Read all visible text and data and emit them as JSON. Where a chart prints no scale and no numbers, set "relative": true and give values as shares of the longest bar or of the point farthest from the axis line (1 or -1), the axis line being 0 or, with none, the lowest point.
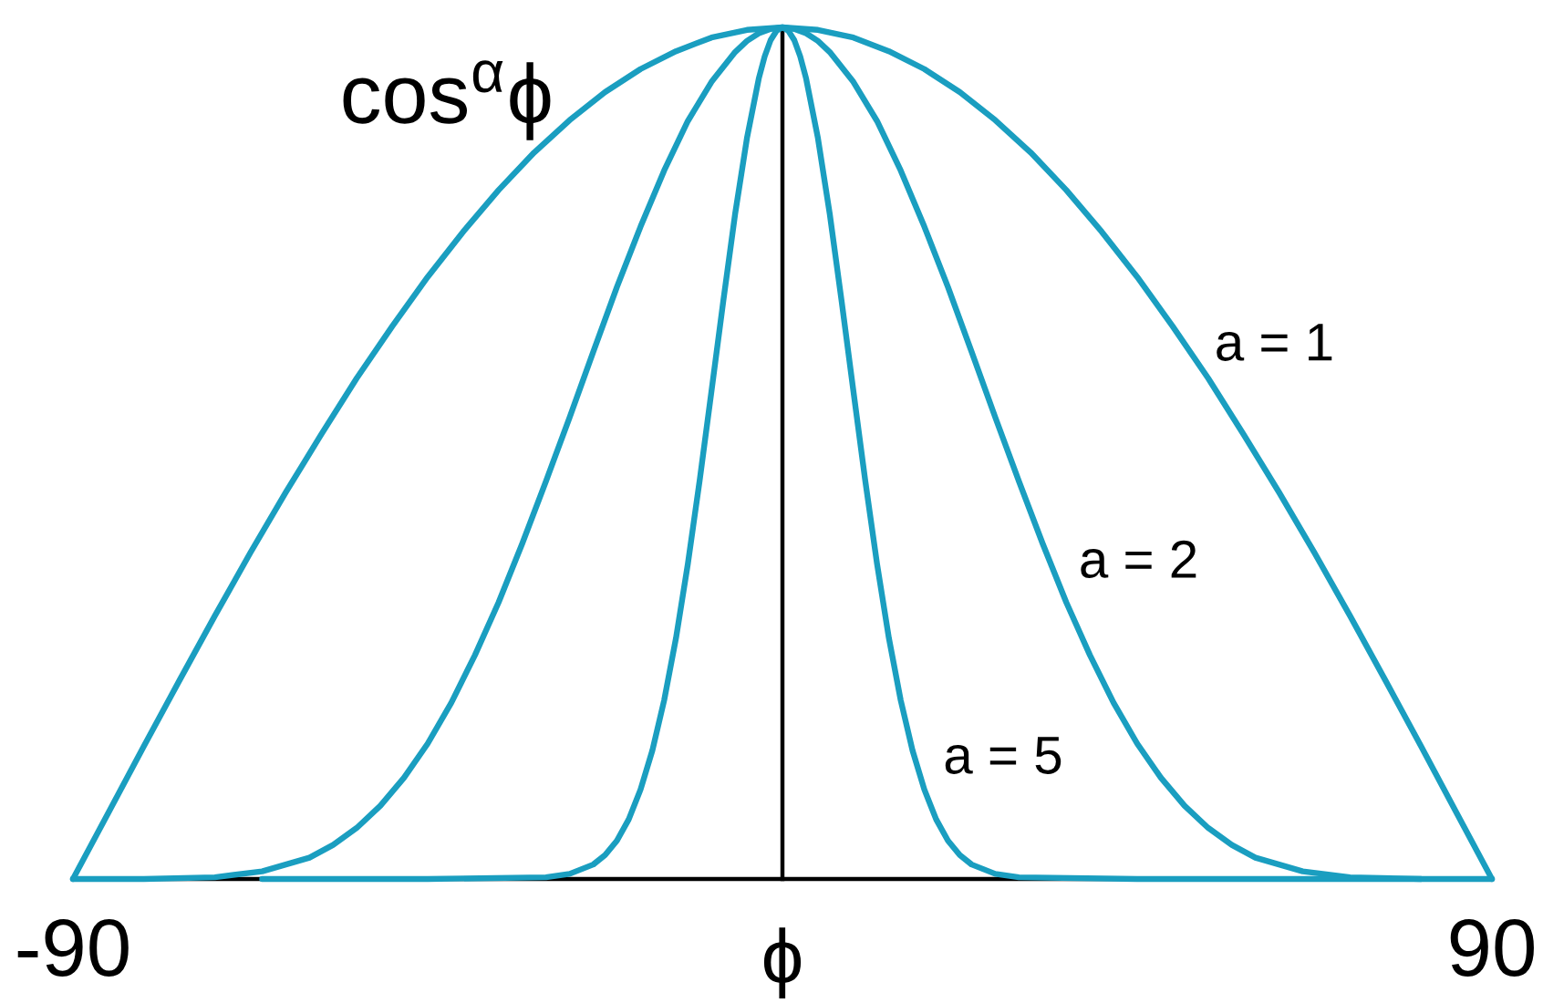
{
  "chart_data": {
    "type": "line",
    "relative": true,
    "ylabel": "cos$^{α}$ϕ",
    "xlabel": "ϕ",
    "xlim": [
      -90,
      90
    ],
    "xticks": [
      -90,
      90
    ],
    "series": [
      {
        "name": "a = 1",
        "color": "#1a9ec0",
        "x": [
          -90,
          -85.5,
          -81,
          -76.5,
          -72,
          -67.5,
          -63,
          -58.5,
          -54,
          -49.5,
          -45,
          -40.5,
          -36,
          -31.5,
          -27,
          -22.5,
          -18,
          -13.5,
          -9,
          -4.5,
          0,
          4.5,
          9,
          13.5,
          18,
          22.5,
          27,
          31.5,
          36,
          40.5,
          45,
          49.5,
          54,
          58.5,
          63,
          67.5,
          72,
          76.5,
          81,
          85.5,
          90
        ],
        "values": [
          0,
          0.078,
          0.156,
          0.233,
          0.309,
          0.383,
          0.454,
          0.522,
          0.588,
          0.649,
          0.707,
          0.76,
          0.809,
          0.853,
          0.891,
          0.924,
          0.951,
          0.972,
          0.988,
          0.997,
          1,
          0.997,
          0.988,
          0.972,
          0.951,
          0.924,
          0.891,
          0.853,
          0.809,
          0.76,
          0.707,
          0.649,
          0.588,
          0.522,
          0.454,
          0.383,
          0.309,
          0.233,
          0.156,
          0.078,
          0
        ]
      },
      {
        "name": "a = 2",
        "color": "#1a9ec0",
        "x": [
          -90,
          -81,
          -72,
          -66,
          -60,
          -57,
          -54,
          -51,
          -48,
          -45,
          -42,
          -39,
          -36,
          -33,
          -30,
          -27,
          -24,
          -21,
          -18,
          -15,
          -12,
          -9,
          -6,
          -4.5,
          -3,
          -1.5,
          0,
          1.5,
          3,
          4.5,
          6,
          9,
          12,
          15,
          18,
          21,
          24,
          27,
          30,
          33,
          36,
          39,
          42,
          45,
          48,
          51,
          54,
          57,
          60,
          66,
          72,
          81
        ],
        "values": [
          0,
          0,
          0.002,
          0.009,
          0.025,
          0.04,
          0.06,
          0.086,
          0.119,
          0.159,
          0.207,
          0.263,
          0.325,
          0.394,
          0.467,
          0.542,
          0.619,
          0.695,
          0.766,
          0.832,
          0.89,
          0.936,
          0.971,
          0.984,
          0.993,
          0.998,
          1,
          0.998,
          0.993,
          0.984,
          0.971,
          0.936,
          0.89,
          0.832,
          0.766,
          0.695,
          0.619,
          0.542,
          0.467,
          0.394,
          0.325,
          0.263,
          0.207,
          0.159,
          0.119,
          0.086,
          0.06,
          0.04,
          0.025,
          0.009,
          0.002,
          0
        ]
      },
      {
        "name": "a = 5",
        "color": "#1a9ec0",
        "x": [
          -66,
          -45,
          -30,
          -27,
          -24,
          -22.5,
          -21,
          -19.5,
          -18,
          -16.5,
          -15,
          -13.5,
          -12,
          -10.5,
          -9,
          -7.5,
          -6,
          -4.5,
          -3,
          -2.25,
          -1.5,
          -0.75,
          0,
          0.75,
          1.5,
          2.25,
          3,
          4.5,
          6,
          7.5,
          9,
          10.5,
          12,
          13.5,
          15,
          16.5,
          18,
          19.5,
          21,
          22.5,
          24,
          27,
          30,
          45,
          90
        ],
        "values": [
          0,
          0,
          0.002,
          0.006,
          0.017,
          0.028,
          0.045,
          0.07,
          0.105,
          0.151,
          0.21,
          0.283,
          0.37,
          0.468,
          0.573,
          0.679,
          0.781,
          0.87,
          0.94,
          0.966,
          0.985,
          0.996,
          1,
          0.996,
          0.985,
          0.966,
          0.94,
          0.87,
          0.781,
          0.679,
          0.573,
          0.468,
          0.37,
          0.283,
          0.21,
          0.151,
          0.105,
          0.07,
          0.045,
          0.028,
          0.017,
          0.006,
          0.002,
          0,
          0
        ]
      }
    ]
  }
}
